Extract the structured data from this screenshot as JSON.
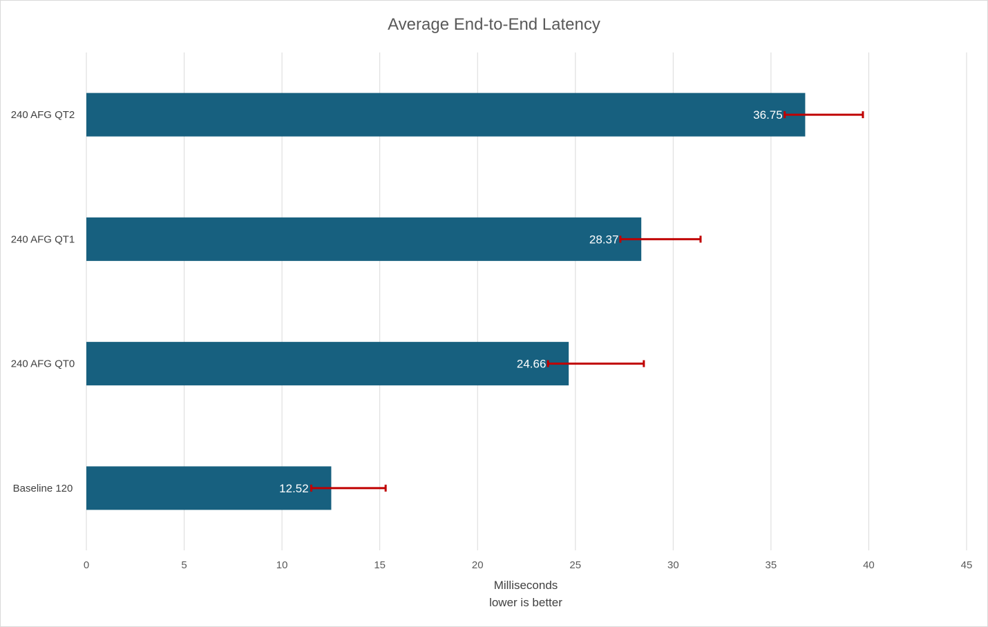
{
  "chart_data": {
    "type": "bar",
    "orientation": "horizontal",
    "title": "Average End-to-End Latency",
    "xlabel": "Milliseconds",
    "xlabel_sub": "lower is better",
    "ylabel": "",
    "categories": [
      "240 AFG QT2",
      "240 AFG QT1",
      "240 AFG QT0",
      "Baseline 120"
    ],
    "values": [
      36.75,
      28.37,
      24.66,
      12.52
    ],
    "value_labels": [
      "36.75",
      "28.37",
      "24.66",
      "12.52"
    ],
    "error_bars": [
      {
        "low": 35.7,
        "high": 39.7
      },
      {
        "low": 27.3,
        "high": 31.4
      },
      {
        "low": 23.6,
        "high": 28.5
      },
      {
        "low": 11.5,
        "high": 15.3
      }
    ],
    "xlim": [
      0,
      45
    ],
    "xticks": [
      0,
      5,
      10,
      15,
      20,
      25,
      30,
      35,
      40,
      45
    ],
    "xtick_labels": [
      "0",
      "5",
      "10",
      "15",
      "20",
      "25",
      "30",
      "35",
      "40",
      "45"
    ],
    "grid": true,
    "legend": "none",
    "colors": {
      "bar": "#17607F",
      "error_bar": "#C00000"
    }
  }
}
